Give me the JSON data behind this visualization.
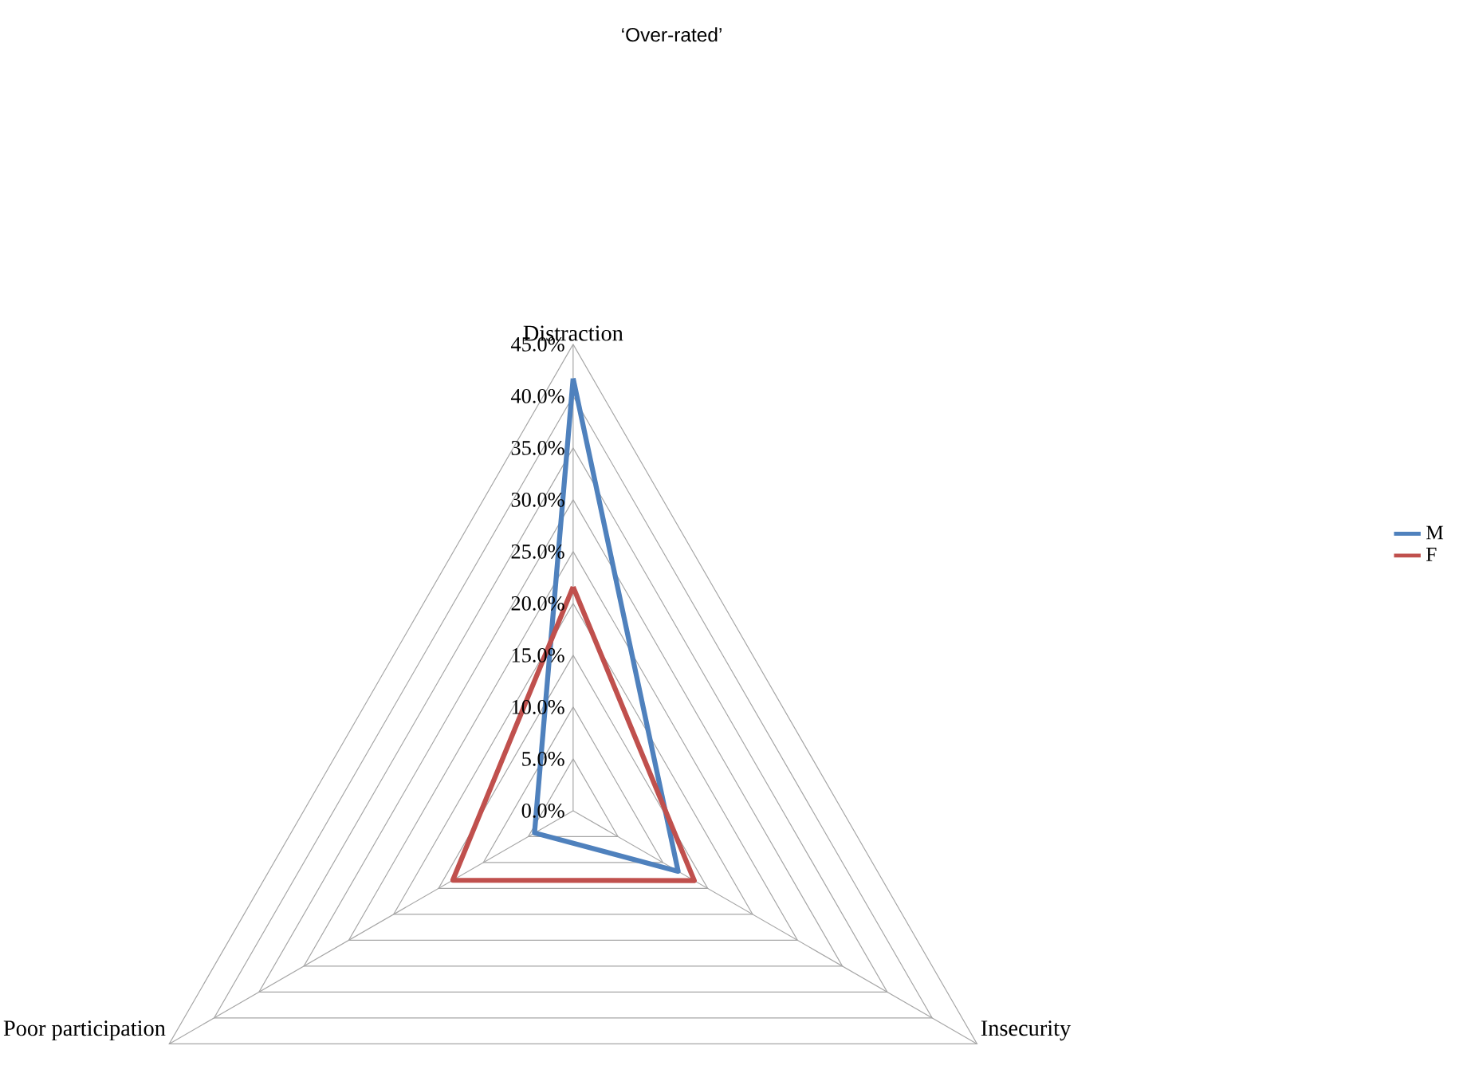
{
  "chart_data": {
    "type": "radar",
    "title": "‘Over-rated’",
    "categories": [
      "Distraction",
      "Insecurity",
      "Poor participation"
    ],
    "series": [
      {
        "name": "M",
        "color": "#4f81bd",
        "values": [
          0.417,
          0.117,
          0.043
        ]
      },
      {
        "name": "F",
        "color": "#c0504d",
        "values": [
          0.216,
          0.135,
          0.134
        ]
      }
    ],
    "ylim": [
      0,
      0.45
    ],
    "yticks": [
      {
        "value": 0,
        "label": "0.0%"
      },
      {
        "value": 0.05,
        "label": "5.0%"
      },
      {
        "value": 0.1,
        "label": "10.0%"
      },
      {
        "value": 0.15,
        "label": "15.0%"
      },
      {
        "value": 0.2,
        "label": "20.0%"
      },
      {
        "value": 0.25,
        "label": "25.0%"
      },
      {
        "value": 0.3,
        "label": "30.0%"
      },
      {
        "value": 0.35,
        "label": "35.0%"
      },
      {
        "value": 0.4,
        "label": "40.0%"
      },
      {
        "value": 0.45,
        "label": "45.0%"
      }
    ],
    "grid": true,
    "legend": "right",
    "line_style": "solid",
    "marker": "none"
  }
}
